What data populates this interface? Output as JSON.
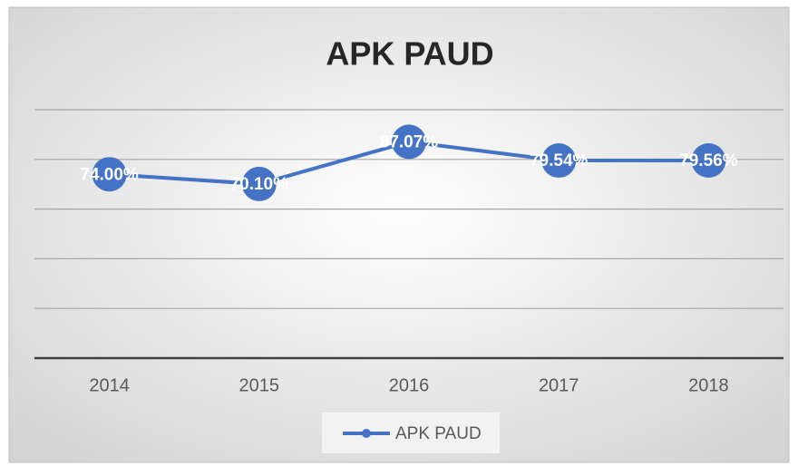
{
  "chart_data": {
    "type": "line",
    "title": "APK PAUD",
    "categories": [
      "2014",
      "2015",
      "2016",
      "2017",
      "2018"
    ],
    "series": [
      {
        "name": "APK PAUD",
        "color": "#4472c4",
        "values": [
          74.0,
          70.1,
          87.07,
          79.54,
          79.56
        ],
        "value_labels": [
          "74.00%",
          "70.10%",
          "87.07%",
          "79.54%",
          "79.56%"
        ]
      }
    ],
    "ylim": [
      0,
      100
    ],
    "yticks": [
      0,
      20,
      40,
      60,
      80,
      100
    ],
    "grid": true,
    "legend": "bottom"
  }
}
